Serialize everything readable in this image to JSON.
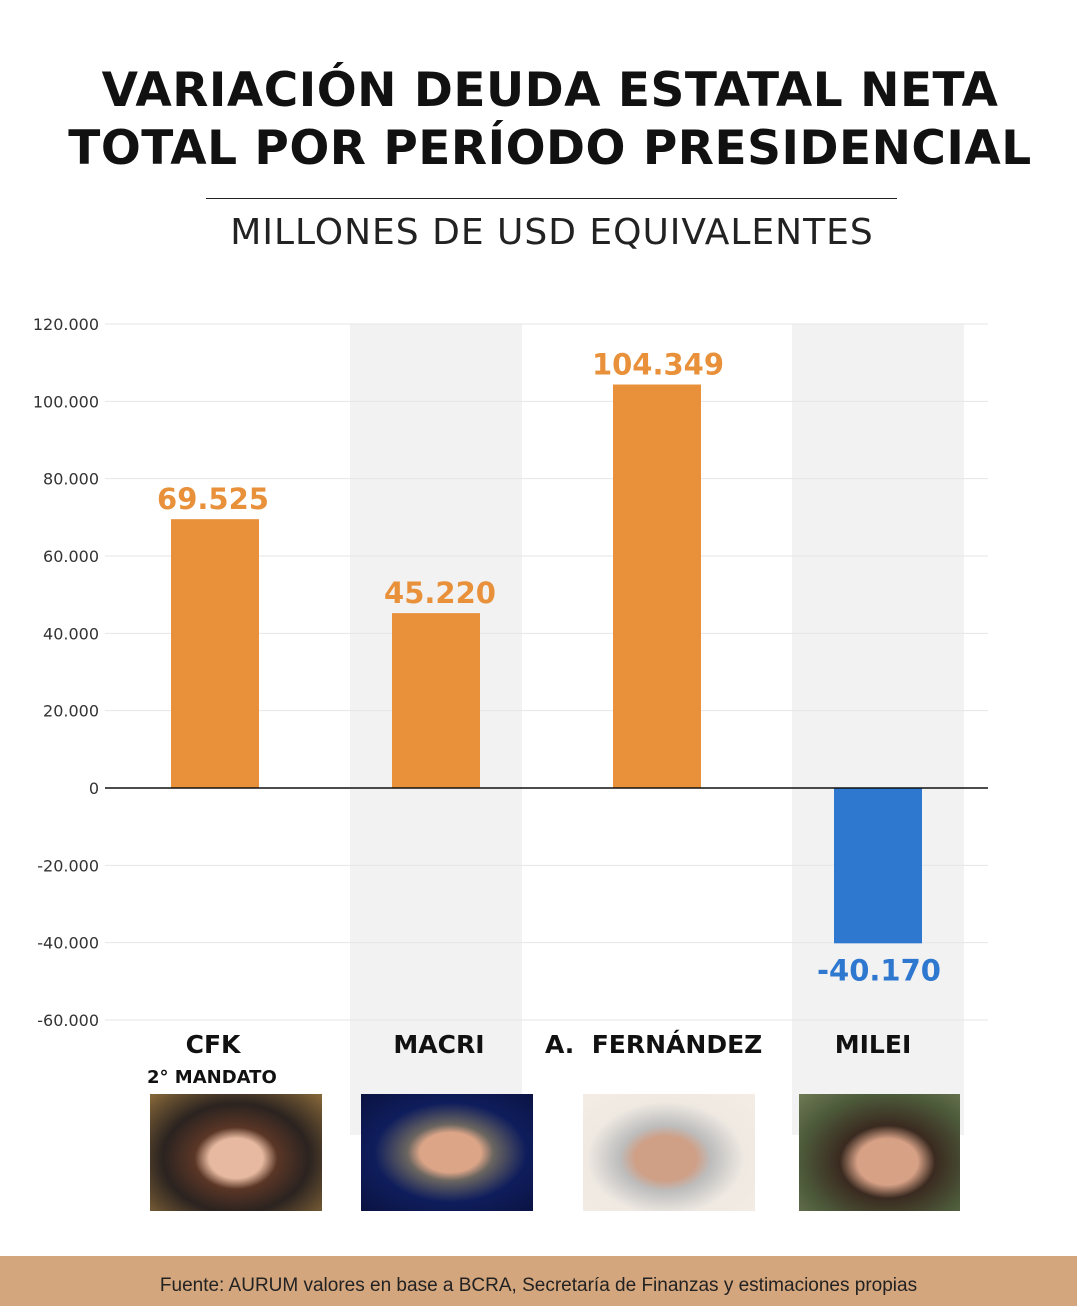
{
  "title_line1": "VARIACIÓN DEUDA ESTATAL NETA",
  "title_line2": "TOTAL POR PERÍODO PRESIDENCIAL",
  "subtitle": "MILLONES DE USD EQUIVALENTES",
  "chart_data": {
    "type": "bar",
    "categories": [
      "CFK",
      "MACRI",
      "A.  FERNÁNDEZ",
      "MILEI"
    ],
    "category_sublabels": [
      "2° MANDATO",
      "",
      "",
      ""
    ],
    "values": [
      69525,
      45220,
      104349,
      -40170
    ],
    "data_labels": [
      "69.525",
      "45.220",
      "104.349",
      "-40.170"
    ],
    "ylim": [
      -60000,
      120000
    ],
    "yticks": [
      120000,
      100000,
      80000,
      60000,
      40000,
      20000,
      0,
      -20000,
      -40000,
      -60000
    ],
    "ytick_labels": [
      "120.000",
      "100.000",
      "80.000",
      "60.000",
      "40.000",
      "20.000",
      "0",
      "-20.000",
      "-40.000",
      "-60.000"
    ],
    "grid": true,
    "colors": {
      "positive": "#E8903A",
      "negative": "#2E78D0",
      "band": "#F2F2F2"
    }
  },
  "footer": "Fuente: AURUM valores en base a BCRA, Secretaría de Finanzas y estimaciones propias"
}
